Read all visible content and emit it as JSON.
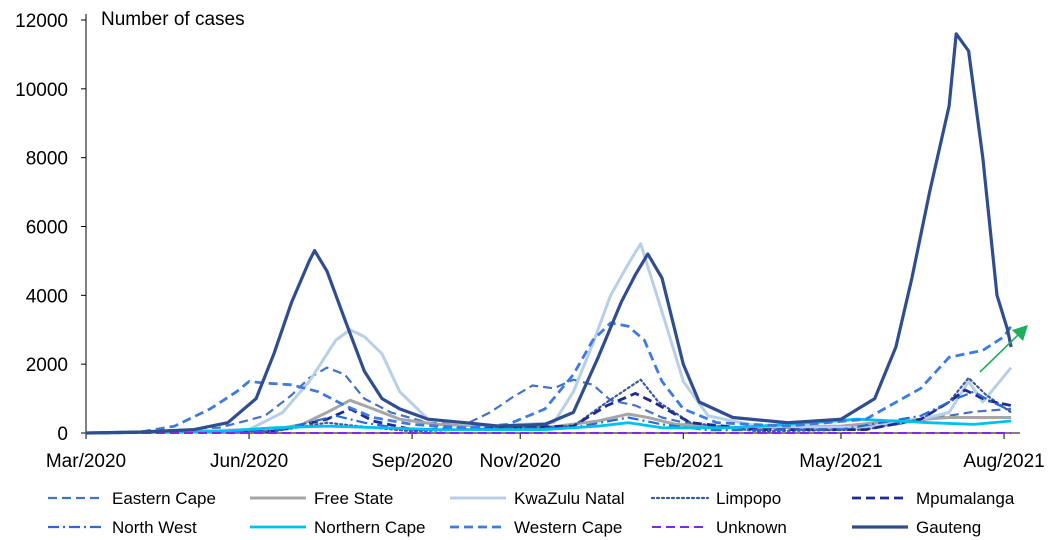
{
  "chart_data": {
    "type": "line",
    "title": "",
    "ylabel": "Number of cases",
    "xlabel": "",
    "ylim": [
      0,
      12000
    ],
    "yticks": [
      0,
      2000,
      4000,
      6000,
      8000,
      10000,
      12000
    ],
    "xlim": [
      "2020-03-01",
      "2021-08-10"
    ],
    "xticks": [
      {
        "date": "2020-03-01",
        "label": "Mar/2020"
      },
      {
        "date": "2020-06-01",
        "label": "Jun/2020"
      },
      {
        "date": "2020-09-01",
        "label": "Sep/2020"
      },
      {
        "date": "2020-11-01",
        "label": "Nov/2020"
      },
      {
        "date": "2021-02-01",
        "label": "Feb/2021"
      },
      {
        "date": "2021-05-01",
        "label": "May/2021"
      },
      {
        "date": "2021-08-01",
        "label": "Aug/2021"
      }
    ],
    "grid": false,
    "legend_position": "bottom",
    "annotations": [
      {
        "type": "arrow",
        "color": "#1fae5b",
        "meaning": "upward trend"
      }
    ],
    "series": [
      {
        "name": "Eastern Cape",
        "color": "#4472c4",
        "dash": "dash",
        "width": 2.2,
        "points": [
          [
            "2020-03-01",
            0
          ],
          [
            "2020-04-15",
            20
          ],
          [
            "2020-05-15",
            150
          ],
          [
            "2020-06-10",
            500
          ],
          [
            "2020-06-25",
            1100
          ],
          [
            "2020-07-05",
            1600
          ],
          [
            "2020-07-15",
            1900
          ],
          [
            "2020-07-25",
            1700
          ],
          [
            "2020-08-05",
            1000
          ],
          [
            "2020-08-20",
            600
          ],
          [
            "2020-09-10",
            300
          ],
          [
            "2020-10-01",
            250
          ],
          [
            "2020-10-15",
            600
          ],
          [
            "2020-10-28",
            1050
          ],
          [
            "2020-11-08",
            1380
          ],
          [
            "2020-11-20",
            1300
          ],
          [
            "2020-12-01",
            1550
          ],
          [
            "2020-12-12",
            1400
          ],
          [
            "2020-12-22",
            950
          ],
          [
            "2021-01-05",
            800
          ],
          [
            "2021-01-20",
            450
          ],
          [
            "2021-02-10",
            200
          ],
          [
            "2021-03-15",
            150
          ],
          [
            "2021-05-01",
            150
          ],
          [
            "2021-06-01",
            250
          ],
          [
            "2021-06-25",
            450
          ],
          [
            "2021-07-15",
            620
          ],
          [
            "2021-08-05",
            700
          ]
        ]
      },
      {
        "name": "Free State",
        "color": "#a6a6a6",
        "dash": "solid",
        "width": 3,
        "points": [
          [
            "2020-03-01",
            0
          ],
          [
            "2020-06-10",
            50
          ],
          [
            "2020-07-01",
            250
          ],
          [
            "2020-07-15",
            600
          ],
          [
            "2020-07-28",
            950
          ],
          [
            "2020-08-10",
            700
          ],
          [
            "2020-08-25",
            400
          ],
          [
            "2020-09-15",
            250
          ],
          [
            "2020-10-15",
            200
          ],
          [
            "2020-11-15",
            150
          ],
          [
            "2020-12-15",
            350
          ],
          [
            "2021-01-01",
            550
          ],
          [
            "2021-01-12",
            450
          ],
          [
            "2021-01-28",
            250
          ],
          [
            "2021-03-01",
            150
          ],
          [
            "2021-05-01",
            200
          ],
          [
            "2021-06-01",
            350
          ],
          [
            "2021-07-01",
            450
          ],
          [
            "2021-08-05",
            450
          ]
        ]
      },
      {
        "name": "KwaZulu Natal",
        "color": "#b8cfe8",
        "dash": "solid",
        "width": 3,
        "points": [
          [
            "2020-03-01",
            0
          ],
          [
            "2020-06-01",
            100
          ],
          [
            "2020-06-20",
            600
          ],
          [
            "2020-07-05",
            1500
          ],
          [
            "2020-07-20",
            2700
          ],
          [
            "2020-07-28",
            3000
          ],
          [
            "2020-08-05",
            2800
          ],
          [
            "2020-08-15",
            2300
          ],
          [
            "2020-08-25",
            1200
          ],
          [
            "2020-09-10",
            400
          ],
          [
            "2020-10-15",
            200
          ],
          [
            "2020-11-20",
            300
          ],
          [
            "2020-12-01",
            1200
          ],
          [
            "2020-12-12",
            2600
          ],
          [
            "2020-12-22",
            4000
          ],
          [
            "2021-01-02",
            5000
          ],
          [
            "2021-01-08",
            5500
          ],
          [
            "2021-01-14",
            4500
          ],
          [
            "2021-01-22",
            3200
          ],
          [
            "2021-02-01",
            1500
          ],
          [
            "2021-02-15",
            500
          ],
          [
            "2021-03-15",
            200
          ],
          [
            "2021-05-15",
            150
          ],
          [
            "2021-06-15",
            400
          ],
          [
            "2021-07-01",
            600
          ],
          [
            "2021-07-12",
            1500
          ],
          [
            "2021-07-20",
            900
          ],
          [
            "2021-08-05",
            1900
          ]
        ]
      },
      {
        "name": "Limpopo",
        "color": "#3d5a99",
        "dash": "dot",
        "width": 2.2,
        "points": [
          [
            "2020-03-01",
            0
          ],
          [
            "2020-06-15",
            50
          ],
          [
            "2020-07-15",
            300
          ],
          [
            "2020-08-01",
            200
          ],
          [
            "2020-09-01",
            50
          ],
          [
            "2020-12-01",
            200
          ],
          [
            "2020-12-20",
            900
          ],
          [
            "2021-01-08",
            1550
          ],
          [
            "2021-01-18",
            900
          ],
          [
            "2021-02-05",
            300
          ],
          [
            "2021-03-15",
            50
          ],
          [
            "2021-05-15",
            100
          ],
          [
            "2021-06-15",
            400
          ],
          [
            "2021-07-01",
            900
          ],
          [
            "2021-07-12",
            1600
          ],
          [
            "2021-07-22",
            1100
          ],
          [
            "2021-08-05",
            600
          ]
        ]
      },
      {
        "name": "Mpumalanga",
        "color": "#1f2c8f",
        "dash": "dash",
        "width": 2.8,
        "points": [
          [
            "2020-03-01",
            0
          ],
          [
            "2020-06-15",
            50
          ],
          [
            "2020-07-15",
            400
          ],
          [
            "2020-07-28",
            700
          ],
          [
            "2020-08-10",
            350
          ],
          [
            "2020-09-01",
            100
          ],
          [
            "2020-12-01",
            200
          ],
          [
            "2020-12-20",
            800
          ],
          [
            "2021-01-05",
            1150
          ],
          [
            "2021-01-15",
            900
          ],
          [
            "2021-02-05",
            300
          ],
          [
            "2021-03-15",
            100
          ],
          [
            "2021-05-15",
            100
          ],
          [
            "2021-06-15",
            400
          ],
          [
            "2021-07-01",
            900
          ],
          [
            "2021-07-10",
            1250
          ],
          [
            "2021-07-22",
            950
          ],
          [
            "2021-08-05",
            800
          ]
        ]
      },
      {
        "name": "North West",
        "color": "#2a6ad4",
        "dash": "dashdot",
        "width": 2.2,
        "points": [
          [
            "2020-03-01",
            0
          ],
          [
            "2020-06-15",
            50
          ],
          [
            "2020-07-20",
            500
          ],
          [
            "2020-08-05",
            300
          ],
          [
            "2020-09-01",
            80
          ],
          [
            "2020-12-01",
            150
          ],
          [
            "2021-01-01",
            450
          ],
          [
            "2021-01-20",
            250
          ],
          [
            "2021-02-15",
            80
          ],
          [
            "2021-05-01",
            100
          ],
          [
            "2021-06-15",
            500
          ],
          [
            "2021-07-05",
            1000
          ],
          [
            "2021-07-15",
            1200
          ],
          [
            "2021-07-25",
            900
          ],
          [
            "2021-08-05",
            650
          ]
        ]
      },
      {
        "name": "Northern Cape",
        "color": "#00c0f0",
        "dash": "solid",
        "width": 2.8,
        "points": [
          [
            "2020-03-01",
            0
          ],
          [
            "2020-05-15",
            50
          ],
          [
            "2020-06-15",
            150
          ],
          [
            "2020-07-15",
            200
          ],
          [
            "2020-08-15",
            150
          ],
          [
            "2020-09-15",
            100
          ],
          [
            "2020-11-15",
            100
          ],
          [
            "2020-12-15",
            200
          ],
          [
            "2021-01-01",
            300
          ],
          [
            "2021-01-20",
            150
          ],
          [
            "2021-03-01",
            150
          ],
          [
            "2021-04-15",
            300
          ],
          [
            "2021-05-10",
            400
          ],
          [
            "2021-06-01",
            350
          ],
          [
            "2021-06-20",
            300
          ],
          [
            "2021-07-15",
            250
          ],
          [
            "2021-08-05",
            350
          ]
        ]
      },
      {
        "name": "Western Cape",
        "color": "#3d7be0",
        "dash": "dash",
        "width": 2.8,
        "points": [
          [
            "2020-03-01",
            0
          ],
          [
            "2020-04-01",
            30
          ],
          [
            "2020-04-20",
            200
          ],
          [
            "2020-05-10",
            700
          ],
          [
            "2020-05-25",
            1200
          ],
          [
            "2020-06-01",
            1500
          ],
          [
            "2020-06-10",
            1450
          ],
          [
            "2020-06-25",
            1400
          ],
          [
            "2020-07-10",
            1200
          ],
          [
            "2020-07-25",
            800
          ],
          [
            "2020-08-10",
            450
          ],
          [
            "2020-09-01",
            250
          ],
          [
            "2020-10-01",
            150
          ],
          [
            "2020-10-25",
            250
          ],
          [
            "2020-11-15",
            700
          ],
          [
            "2020-12-01",
            1700
          ],
          [
            "2020-12-12",
            2700
          ],
          [
            "2020-12-22",
            3200
          ],
          [
            "2021-01-01",
            3100
          ],
          [
            "2021-01-10",
            2700
          ],
          [
            "2021-01-20",
            1500
          ],
          [
            "2021-02-01",
            700
          ],
          [
            "2021-02-20",
            300
          ],
          [
            "2021-04-01",
            200
          ],
          [
            "2021-05-15",
            400
          ],
          [
            "2021-06-15",
            1300
          ],
          [
            "2021-07-01",
            2200
          ],
          [
            "2021-07-20",
            2400
          ],
          [
            "2021-08-01",
            2800
          ],
          [
            "2021-08-05",
            3100
          ]
        ]
      },
      {
        "name": "Unknown",
        "color": "#7c2ae8",
        "dash": "dash",
        "width": 2,
        "points": [
          [
            "2020-03-01",
            0
          ],
          [
            "2021-08-05",
            0
          ]
        ]
      },
      {
        "name": "Gauteng",
        "color": "#2f4d8f",
        "dash": "solid",
        "width": 3.2,
        "points": [
          [
            "2020-03-01",
            0
          ],
          [
            "2020-04-01",
            30
          ],
          [
            "2020-05-01",
            100
          ],
          [
            "2020-05-20",
            300
          ],
          [
            "2020-06-05",
            1000
          ],
          [
            "2020-06-15",
            2300
          ],
          [
            "2020-06-25",
            3800
          ],
          [
            "2020-07-05",
            5000
          ],
          [
            "2020-07-08",
            5300
          ],
          [
            "2020-07-15",
            4700
          ],
          [
            "2020-07-25",
            3300
          ],
          [
            "2020-08-05",
            1800
          ],
          [
            "2020-08-15",
            1000
          ],
          [
            "2020-08-25",
            700
          ],
          [
            "2020-09-10",
            400
          ],
          [
            "2020-10-01",
            300
          ],
          [
            "2020-10-20",
            200
          ],
          [
            "2020-11-15",
            250
          ],
          [
            "2020-12-01",
            600
          ],
          [
            "2020-12-15",
            2200
          ],
          [
            "2020-12-28",
            3800
          ],
          [
            "2021-01-05",
            4600
          ],
          [
            "2021-01-12",
            5200
          ],
          [
            "2021-01-20",
            4500
          ],
          [
            "2021-02-01",
            2000
          ],
          [
            "2021-02-10",
            900
          ],
          [
            "2021-03-01",
            450
          ],
          [
            "2021-04-01",
            300
          ],
          [
            "2021-05-01",
            400
          ],
          [
            "2021-05-20",
            1000
          ],
          [
            "2021-06-01",
            2500
          ],
          [
            "2021-06-10",
            4500
          ],
          [
            "2021-06-20",
            7000
          ],
          [
            "2021-07-01",
            9500
          ],
          [
            "2021-07-05",
            11600
          ],
          [
            "2021-07-12",
            11100
          ],
          [
            "2021-07-20",
            8000
          ],
          [
            "2021-07-28",
            4000
          ],
          [
            "2021-08-03",
            3000
          ],
          [
            "2021-08-05",
            2500
          ]
        ]
      }
    ]
  }
}
